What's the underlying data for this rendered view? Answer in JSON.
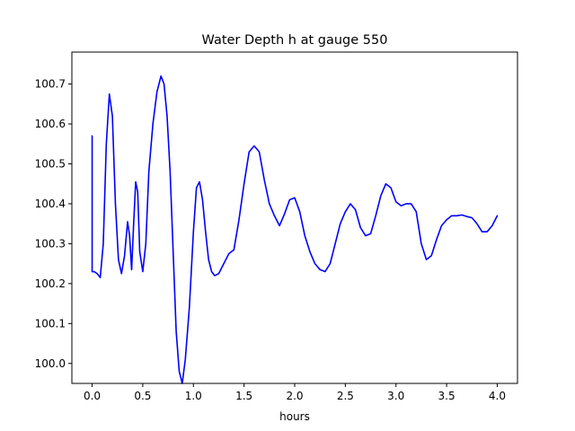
{
  "chart_data": {
    "type": "line",
    "title": "Water Depth h at gauge 550",
    "xlabel": "hours",
    "ylabel": "",
    "xlim": [
      -0.2,
      4.2
    ],
    "ylim": [
      99.95,
      100.78
    ],
    "xticks": [
      0.0,
      0.5,
      1.0,
      1.5,
      2.0,
      2.5,
      3.0,
      3.5,
      4.0
    ],
    "xtick_labels": [
      "0.0",
      "0.5",
      "1.0",
      "1.5",
      "2.0",
      "2.5",
      "3.0",
      "3.5",
      "4.0"
    ],
    "yticks": [
      100.0,
      100.1,
      100.2,
      100.3,
      100.4,
      100.5,
      100.6,
      100.7
    ],
    "ytick_labels": [
      "100.0",
      "100.1",
      "100.2",
      "100.3",
      "100.4",
      "100.5",
      "100.6",
      "100.7"
    ],
    "grid": false,
    "legend": "none",
    "series": [
      {
        "color": "#0000ff",
        "x": [
          0.0,
          0.0,
          0.02,
          0.05,
          0.08,
          0.11,
          0.14,
          0.17,
          0.2,
          0.23,
          0.26,
          0.29,
          0.32,
          0.35,
          0.37,
          0.39,
          0.41,
          0.43,
          0.45,
          0.47,
          0.5,
          0.53,
          0.56,
          0.6,
          0.64,
          0.68,
          0.71,
          0.74,
          0.77,
          0.8,
          0.83,
          0.86,
          0.89,
          0.92,
          0.96,
          1.0,
          1.03,
          1.06,
          1.09,
          1.12,
          1.15,
          1.18,
          1.21,
          1.25,
          1.3,
          1.35,
          1.4,
          1.45,
          1.5,
          1.55,
          1.6,
          1.65,
          1.7,
          1.75,
          1.8,
          1.85,
          1.9,
          1.95,
          2.0,
          2.05,
          2.1,
          2.15,
          2.2,
          2.25,
          2.3,
          2.35,
          2.4,
          2.45,
          2.5,
          2.55,
          2.6,
          2.65,
          2.7,
          2.75,
          2.8,
          2.85,
          2.9,
          2.95,
          3.0,
          3.05,
          3.1,
          3.15,
          3.2,
          3.25,
          3.3,
          3.35,
          3.4,
          3.45,
          3.5,
          3.55,
          3.6,
          3.65,
          3.7,
          3.75,
          3.8,
          3.85,
          3.9,
          3.95,
          4.0
        ],
        "y": [
          100.57,
          100.23,
          100.23,
          100.225,
          100.215,
          100.3,
          100.55,
          100.675,
          100.62,
          100.4,
          100.26,
          100.225,
          100.27,
          100.355,
          100.32,
          100.235,
          100.35,
          100.455,
          100.43,
          100.28,
          100.23,
          100.3,
          100.48,
          100.6,
          100.68,
          100.72,
          100.7,
          100.62,
          100.48,
          100.28,
          100.08,
          99.98,
          99.95,
          100.01,
          100.14,
          100.33,
          100.44,
          100.455,
          100.41,
          100.33,
          100.26,
          100.23,
          100.22,
          100.225,
          100.25,
          100.275,
          100.285,
          100.36,
          100.45,
          100.53,
          100.545,
          100.53,
          100.46,
          100.4,
          100.37,
          100.345,
          100.375,
          100.41,
          100.415,
          100.38,
          100.32,
          100.28,
          100.25,
          100.235,
          100.23,
          100.25,
          100.3,
          100.35,
          100.38,
          100.4,
          100.385,
          100.34,
          100.32,
          100.325,
          100.37,
          100.42,
          100.45,
          100.44,
          100.405,
          100.395,
          100.4,
          100.4,
          100.38,
          100.3,
          100.26,
          100.27,
          100.31,
          100.345,
          100.36,
          100.37,
          100.37,
          100.372,
          100.368,
          100.365,
          100.35,
          100.33,
          100.33,
          100.345,
          100.37
        ]
      }
    ]
  }
}
